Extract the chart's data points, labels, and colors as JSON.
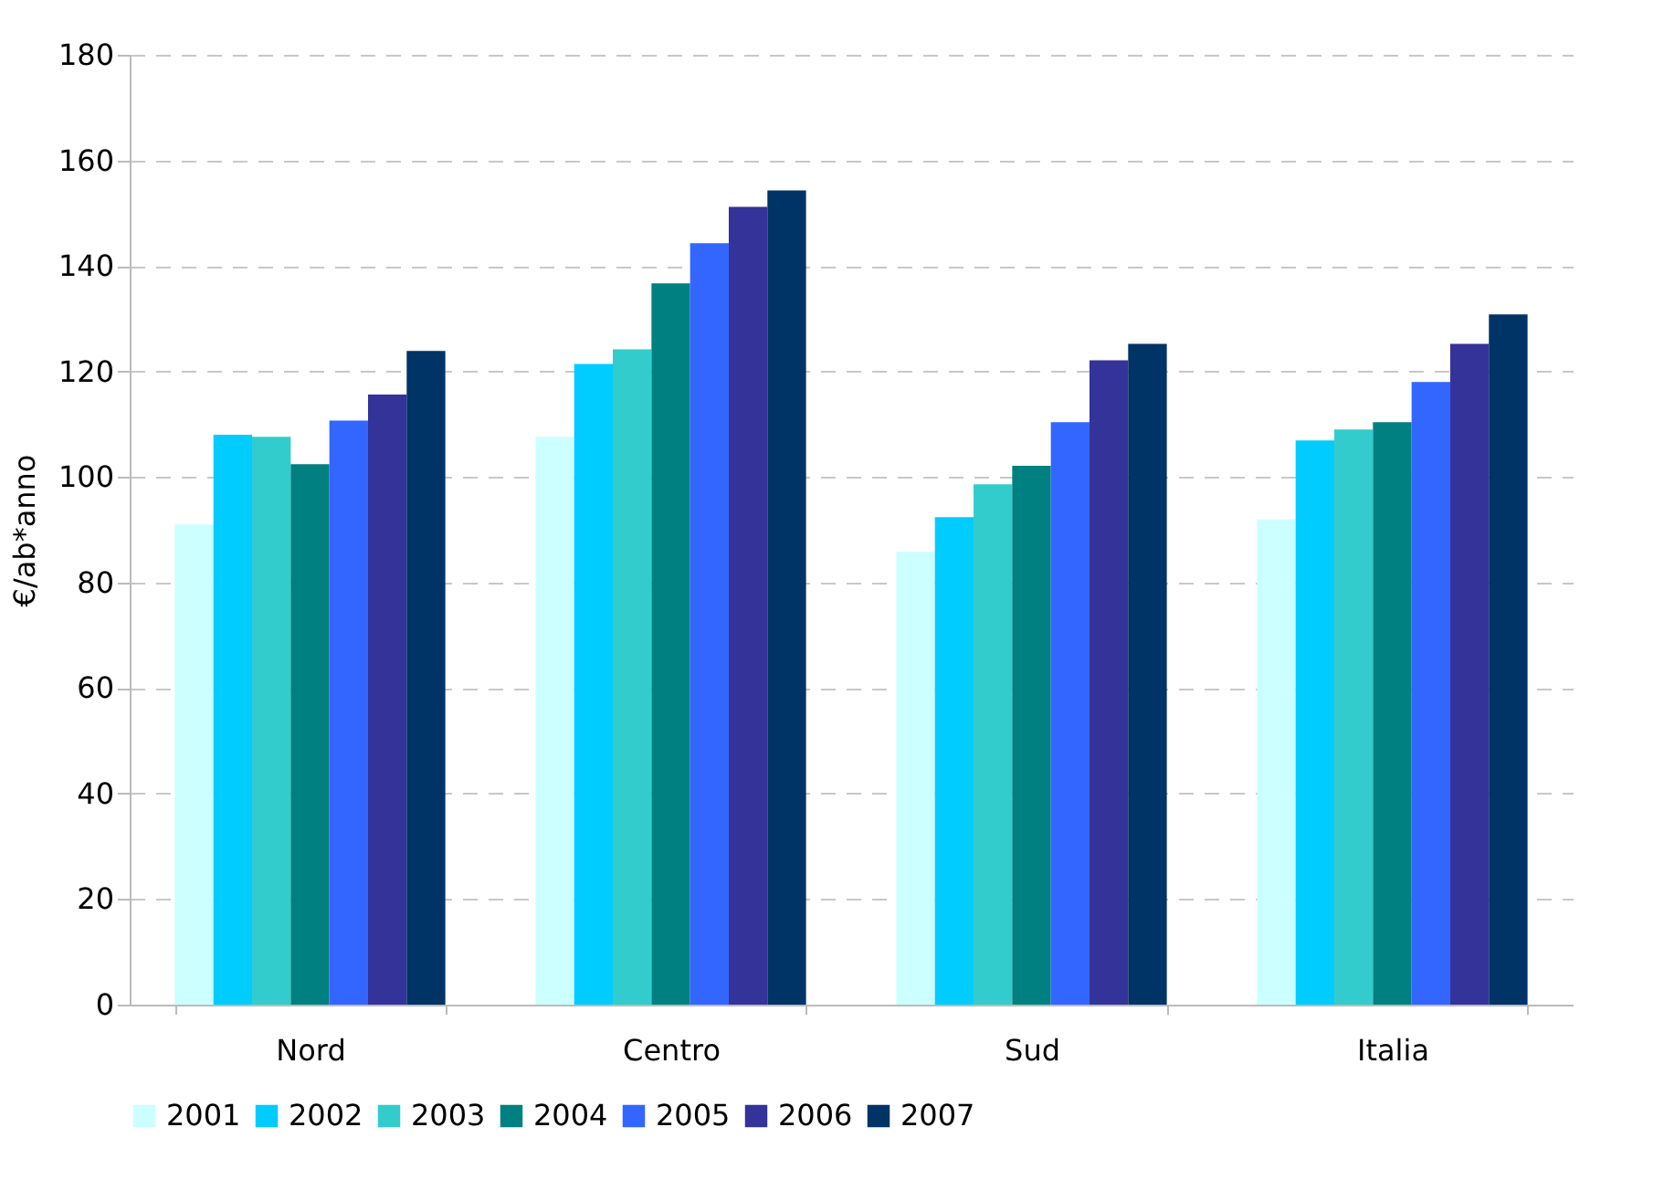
{
  "chart_data": {
    "type": "bar",
    "ylabel": "€/ab*anno",
    "categories": [
      "Nord",
      "Centro",
      "Sud",
      "Italia"
    ],
    "series": [
      {
        "name": "2001",
        "color": "#ccffff",
        "values": [
          91,
          107.6,
          85.8,
          92
        ]
      },
      {
        "name": "2002",
        "color": "#00ccff",
        "values": [
          108,
          121.4,
          92.4,
          106.9
        ]
      },
      {
        "name": "2003",
        "color": "#33cccc",
        "values": [
          107.6,
          124.2,
          98.6,
          109
        ]
      },
      {
        "name": "2004",
        "color": "#008080",
        "values": [
          102.4,
          136.7,
          102.1,
          110.4
        ]
      },
      {
        "name": "2005",
        "color": "#3366ff",
        "values": [
          110.7,
          144.3,
          110.4,
          118
        ]
      },
      {
        "name": "2006",
        "color": "#333399",
        "values": [
          115.6,
          151.2,
          122.1,
          125.2
        ]
      },
      {
        "name": "2007",
        "color": "#003366",
        "values": [
          123.9,
          154.3,
          125.2,
          130.8
        ]
      }
    ],
    "ylim": [
      0,
      180
    ],
    "yticks": [
      0,
      20,
      40,
      60,
      80,
      100,
      120,
      140,
      160,
      180
    ],
    "grid": "y",
    "legend": "bottom"
  }
}
